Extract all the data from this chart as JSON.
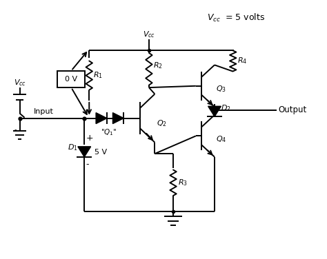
{
  "background": "#ffffff",
  "line_color": "#000000",
  "line_width": 1.4,
  "fig_width": 4.74,
  "fig_height": 3.76,
  "dpi": 100
}
